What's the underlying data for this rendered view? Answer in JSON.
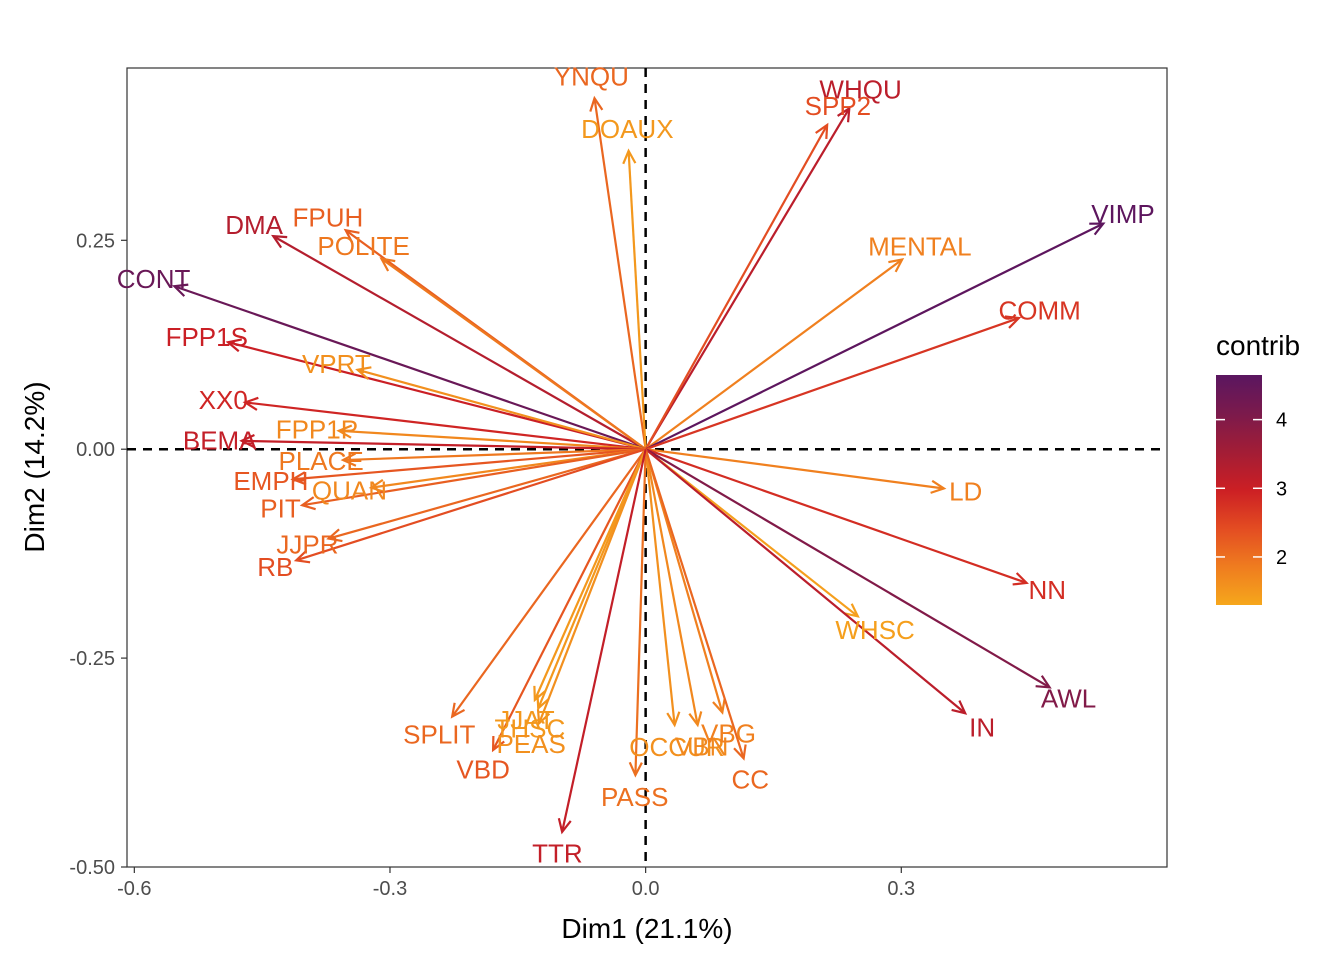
{
  "chart_data": {
    "type": "variable-correlation-plot",
    "xlabel": "Dim1 (21.1%)",
    "ylabel": "Dim2 (14.2%)",
    "xlim": [
      -0.6086,
      0.6118
    ],
    "ylim": [
      -0.5,
      0.4562
    ],
    "x_ticks": [
      {
        "value": -0.6,
        "label": "-0.6"
      },
      {
        "value": -0.3,
        "label": "-0.3"
      },
      {
        "value": 0,
        "label": "0.0"
      },
      {
        "value": 0.3,
        "label": "0.3"
      }
    ],
    "y_ticks": [
      {
        "value": 0.25,
        "label": "0.25"
      },
      {
        "value": 0,
        "label": "0.00"
      },
      {
        "value": -0.25,
        "label": "-0.25"
      },
      {
        "value": -0.5,
        "label": "-0.50"
      }
    ],
    "grid": false,
    "reference_lines": {
      "x": 0,
      "y": 0,
      "style": "dashed"
    },
    "legend": {
      "title": "contrib",
      "placement": "right",
      "range": [
        1.3,
        4.65
      ],
      "ticks": [
        {
          "value": 2,
          "label": "2"
        },
        {
          "value": 3,
          "label": "3"
        },
        {
          "value": 4,
          "label": "4"
        }
      ],
      "colors": [
        "#f6a71c",
        "#ef7c1f",
        "#e34c22",
        "#cc1f24",
        "#a21d36",
        "#7b1a4c",
        "#5a1660"
      ]
    },
    "variables": [
      {
        "name": "YNQU",
        "x": -0.06,
        "y": 0.42,
        "contrib": 2.1
      },
      {
        "name": "DOAUX",
        "x": -0.02,
        "y": 0.357,
        "contrib": 1.5
      },
      {
        "name": "WHQU",
        "x": 0.239,
        "y": 0.408,
        "contrib": 3.2
      },
      {
        "name": "SPP2",
        "x": 0.213,
        "y": 0.388,
        "contrib": 2.4
      },
      {
        "name": "MENTAL",
        "x": 0.301,
        "y": 0.227,
        "contrib": 1.8
      },
      {
        "name": "VIMP",
        "x": 0.537,
        "y": 0.27,
        "contrib": 4.6
      },
      {
        "name": "COMM",
        "x": 0.438,
        "y": 0.157,
        "contrib": 2.7
      },
      {
        "name": "DMA",
        "x": -0.437,
        "y": 0.255,
        "contrib": 3.3
      },
      {
        "name": "FPUH",
        "x": -0.352,
        "y": 0.262,
        "contrib": 2.2
      },
      {
        "name": "POLITE",
        "x": -0.31,
        "y": 0.228,
        "contrib": 1.9
      },
      {
        "name": "CONT",
        "x": -0.553,
        "y": 0.195,
        "contrib": 4.4
      },
      {
        "name": "FPP1S",
        "x": -0.49,
        "y": 0.128,
        "contrib": 3.0
      },
      {
        "name": "VPRT",
        "x": -0.338,
        "y": 0.095,
        "contrib": 1.6
      },
      {
        "name": "XX0",
        "x": -0.47,
        "y": 0.056,
        "contrib": 2.9
      },
      {
        "name": "FPP1P",
        "x": -0.36,
        "y": 0.022,
        "contrib": 1.7
      },
      {
        "name": "BEMA",
        "x": -0.474,
        "y": 0.01,
        "contrib": 3.1
      },
      {
        "name": "PLACE",
        "x": -0.355,
        "y": -0.013,
        "contrib": 1.9
      },
      {
        "name": "EMPH",
        "x": -0.414,
        "y": -0.036,
        "contrib": 2.3
      },
      {
        "name": "QUAN",
        "x": -0.322,
        "y": -0.046,
        "contrib": 1.7
      },
      {
        "name": "PIT",
        "x": -0.403,
        "y": -0.067,
        "contrib": 2.2
      },
      {
        "name": "JJPR",
        "x": -0.372,
        "y": -0.107,
        "contrib": 2.1
      },
      {
        "name": "RB",
        "x": -0.41,
        "y": -0.133,
        "contrib": 2.4
      },
      {
        "name": "LD",
        "x": 0.35,
        "y": -0.047,
        "contrib": 1.8
      },
      {
        "name": "NN",
        "x": 0.447,
        "y": -0.16,
        "contrib": 2.8
      },
      {
        "name": "WHSC",
        "x": 0.249,
        "y": -0.2,
        "contrib": 1.4
      },
      {
        "name": "AWL",
        "x": 0.474,
        "y": -0.285,
        "contrib": 4.0
      },
      {
        "name": "IN",
        "x": 0.375,
        "y": -0.316,
        "contrib": 3.2
      },
      {
        "name": "SPLIT",
        "x": -0.227,
        "y": -0.32,
        "contrib": 2.1
      },
      {
        "name": "THSC",
        "x": -0.126,
        "y": -0.31,
        "contrib": 1.5
      },
      {
        "name": "PEAS",
        "x": -0.125,
        "y": -0.328,
        "contrib": 1.6
      },
      {
        "name": "VBD",
        "x": -0.179,
        "y": -0.36,
        "contrib": 2.3
      },
      {
        "name": "JJAT",
        "x": -0.13,
        "y": -0.3,
        "contrib": 1.5
      },
      {
        "name": "OCCUR",
        "x": 0.034,
        "y": -0.33,
        "contrib": 1.6
      },
      {
        "name": "VBN",
        "x": 0.061,
        "y": -0.33,
        "contrib": 1.7
      },
      {
        "name": "VBG",
        "x": 0.09,
        "y": -0.315,
        "contrib": 1.8
      },
      {
        "name": "CC",
        "x": 0.115,
        "y": -0.37,
        "contrib": 2.1
      },
      {
        "name": "PASS",
        "x": -0.012,
        "y": -0.39,
        "contrib": 2.0
      },
      {
        "name": "TTR",
        "x": -0.098,
        "y": -0.458,
        "contrib": 3.1
      }
    ]
  }
}
